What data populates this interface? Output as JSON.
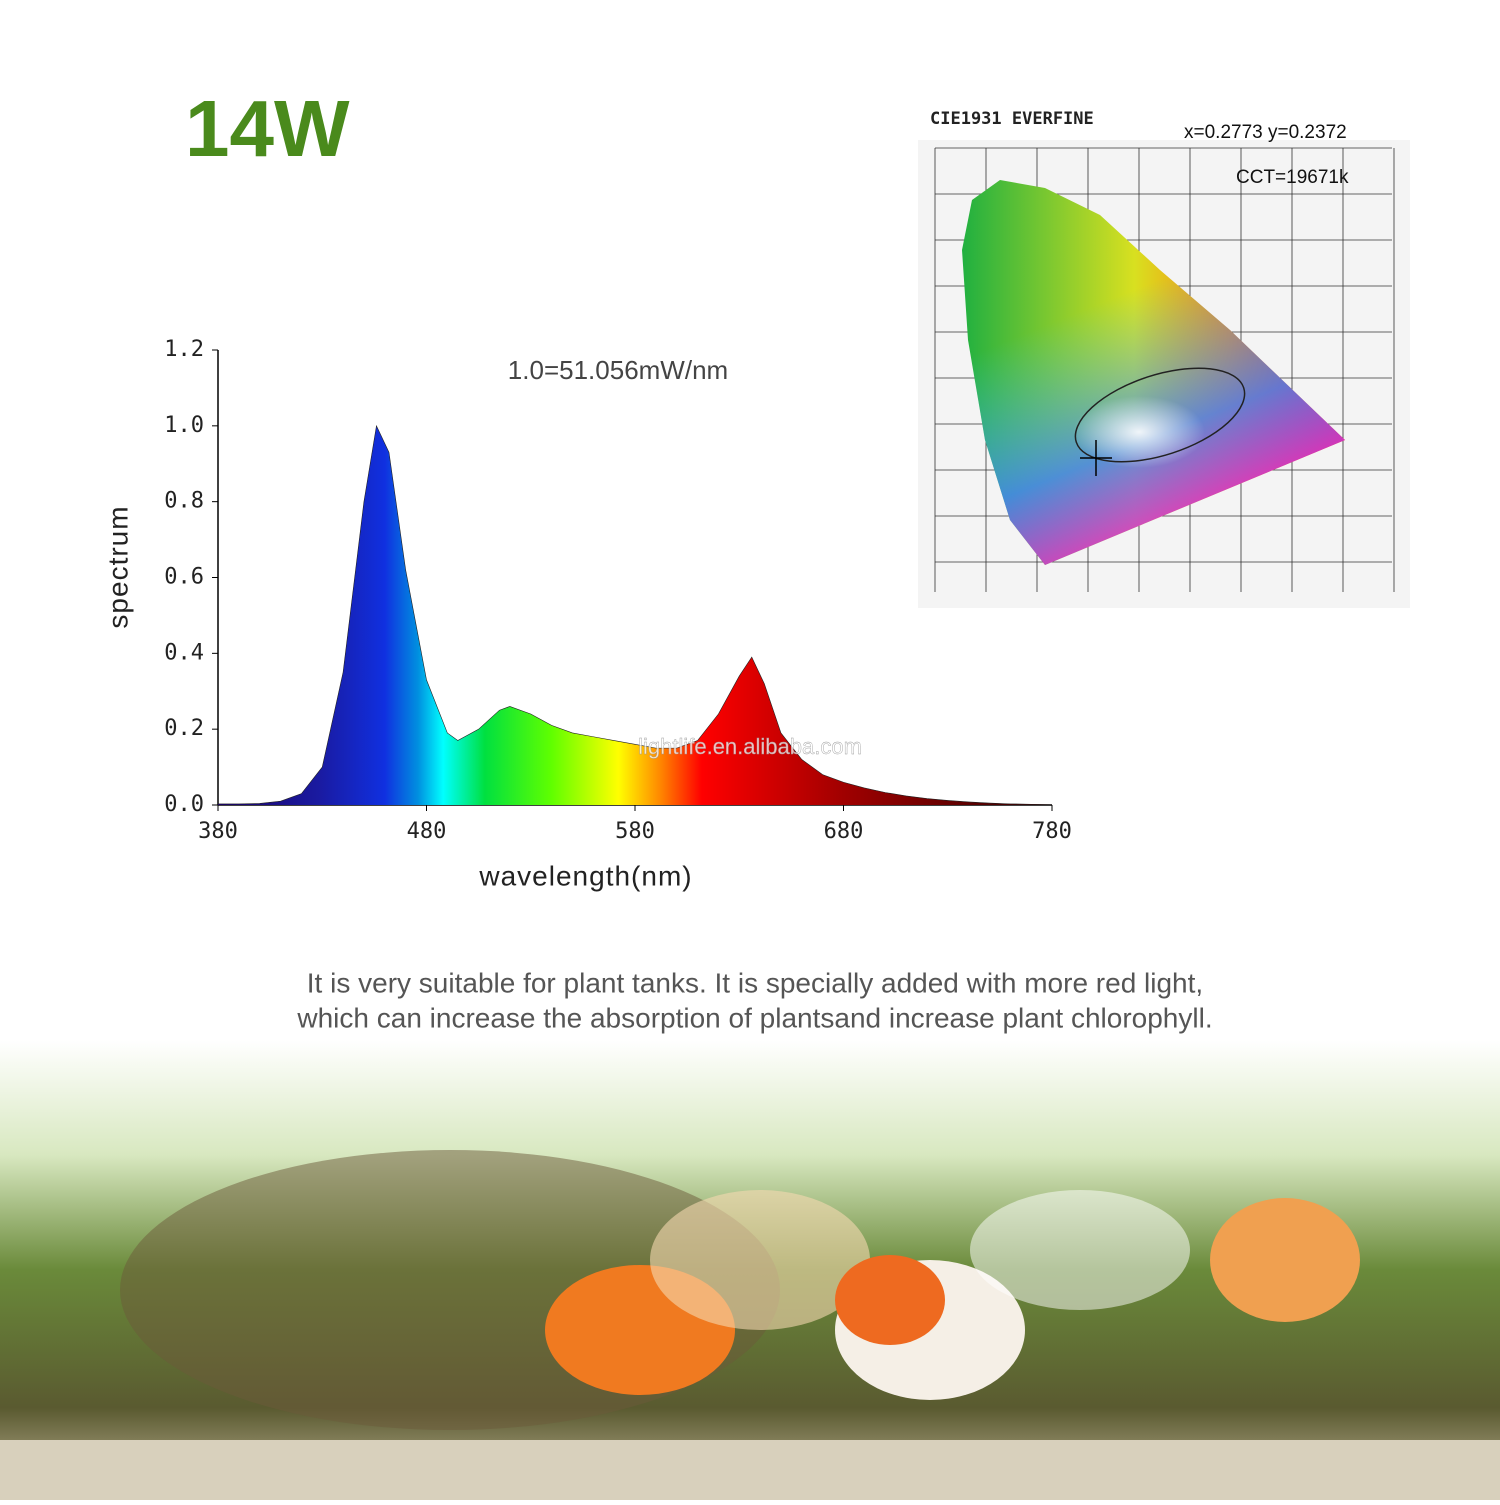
{
  "header": {
    "title": "14W"
  },
  "chart_data": {
    "type": "line",
    "annotation": "1.0=51.056mW/nm",
    "xlabel": "wavelength(nm)",
    "ylabel": "spectrum",
    "x": [
      380,
      390,
      400,
      410,
      420,
      430,
      440,
      450,
      456,
      462,
      470,
      480,
      490,
      495,
      505,
      515,
      520,
      530,
      540,
      550,
      560,
      570,
      580,
      590,
      600,
      610,
      620,
      630,
      636,
      642,
      650,
      660,
      670,
      680,
      690,
      700,
      710,
      720,
      730,
      740,
      750,
      760,
      770,
      780
    ],
    "series": [
      {
        "name": "spectrum",
        "values": [
          0.003,
          0.003,
          0.004,
          0.01,
          0.03,
          0.1,
          0.35,
          0.8,
          1.0,
          0.93,
          0.62,
          0.33,
          0.19,
          0.17,
          0.2,
          0.25,
          0.26,
          0.24,
          0.21,
          0.19,
          0.18,
          0.17,
          0.16,
          0.15,
          0.15,
          0.17,
          0.24,
          0.34,
          0.39,
          0.32,
          0.19,
          0.12,
          0.08,
          0.06,
          0.045,
          0.033,
          0.024,
          0.017,
          0.012,
          0.008,
          0.005,
          0.003,
          0.002,
          0.001
        ]
      }
    ],
    "xlim": [
      380,
      780
    ],
    "xticks": [
      380,
      480,
      580,
      680,
      780
    ],
    "ylim": [
      0,
      1.2
    ],
    "yticks": [
      {
        "value": 0,
        "label": "0.0"
      },
      0.2,
      0.4,
      0.6,
      0.8,
      {
        "value": 1,
        "label": "1.0"
      },
      1.2
    ]
  },
  "watermark": "lightlife.en.alibaba.com",
  "cie": {
    "title": "CIE1931 EVERFINE",
    "coords": "x=0.2773  y=0.2372",
    "cct": "CCT=19671k"
  },
  "description": [
    "It is very suitable for plant tanks. It is specially added with more red light,",
    "which can increase the absorption of plantsand increase plant chlorophyll."
  ]
}
